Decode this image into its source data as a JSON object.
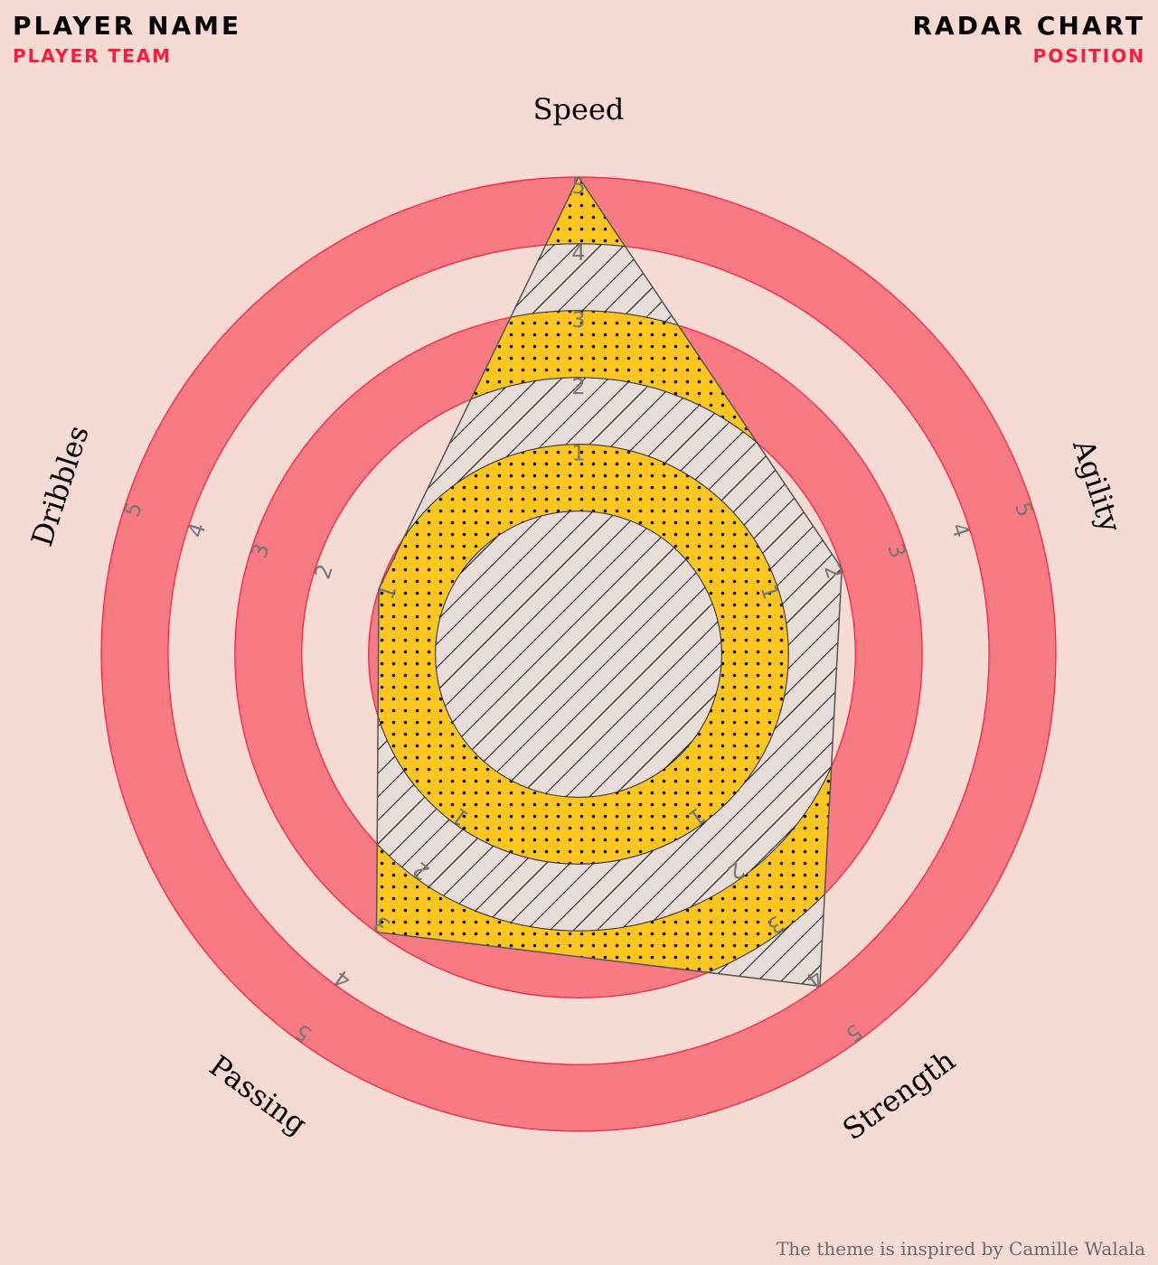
{
  "header": {
    "player_name": "PLAYER NAME",
    "player_team": "PLAYER TEAM",
    "chart_title": "RADAR CHART",
    "position": "POSITION"
  },
  "footer": {
    "credit": "The theme is inspired by Camille Walala"
  },
  "colors": {
    "background": "#f5dbd3",
    "ring": "#f87a82",
    "ring_edge": "#ff1a3c",
    "fill_yellow": "#fcc520",
    "fill_grey": "#e8dcd8",
    "accent": "#ff1a3c"
  },
  "chart_data": {
    "type": "radar",
    "categories": [
      "Speed",
      "Agility",
      "Strength",
      "Passing",
      "Dribbles"
    ],
    "values": [
      5,
      2,
      4,
      3,
      1
    ],
    "rlim": [
      0,
      5
    ],
    "ticks": [
      1,
      2,
      3,
      4,
      5
    ],
    "tick_labels": [
      "1",
      "2",
      "3",
      "4",
      "5"
    ],
    "inner_radius_ratio": 0.3
  }
}
